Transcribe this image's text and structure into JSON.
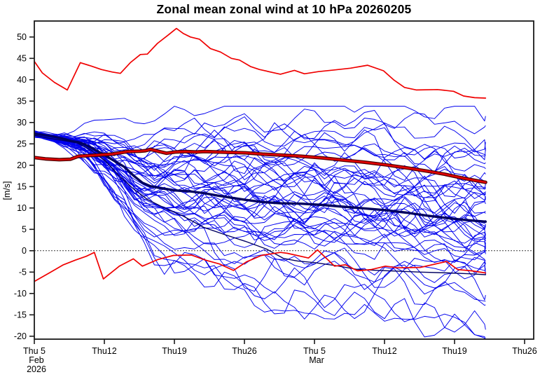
{
  "title": "Zonal mean zonal wind at 10 hPa 20260205",
  "chart_data": {
    "type": "line",
    "title": "Zonal mean zonal wind at 10 hPa 20260205",
    "ylabel": "[m/s]",
    "ylim": [
      -20.7,
      53.7
    ],
    "xlim_days": [
      0,
      49.9
    ],
    "start_date_label": [
      "Thu 5",
      "Feb",
      "2026"
    ],
    "grid": false,
    "legend": "none",
    "zero_line_dashed": true,
    "axis_color": "#1a1a1a",
    "yticks": [
      -20,
      -15,
      -10,
      -5,
      0,
      5,
      10,
      15,
      20,
      25,
      30,
      35,
      40,
      45,
      50
    ],
    "xticks": [
      {
        "d": 0,
        "label": "Thu 5",
        "sub": [
          "Feb",
          "2026"
        ]
      },
      {
        "d": 7,
        "label": "Thu12",
        "sub": []
      },
      {
        "d": 14,
        "label": "Thu19",
        "sub": []
      },
      {
        "d": 21,
        "label": "Thu26",
        "sub": []
      },
      {
        "d": 28,
        "label": "Thu 5",
        "sub": [
          "Mar"
        ]
      },
      {
        "d": 35,
        "label": "Thu12",
        "sub": []
      },
      {
        "d": 42,
        "label": "Thu19",
        "sub": []
      },
      {
        "d": 49,
        "label": "Thu26",
        "sub": []
      }
    ],
    "series": [
      {
        "name": "control-forecast",
        "color": "#000060",
        "width": 1.4,
        "days": [
          0,
          1.5,
          2.9,
          4.3,
          5.7,
          7.1,
          8.5,
          9.9,
          11.3,
          13.0,
          14.8,
          16.9,
          19.0,
          21.1,
          23.2,
          24.9,
          26.3,
          28.1,
          30.2,
          32.3,
          34.4,
          36.5,
          38.6,
          41.4,
          43.5,
          45.1
        ],
        "values": [
          27.0,
          26.3,
          25.8,
          25.2,
          23.5,
          21.0,
          17.5,
          14.5,
          12.0,
          10.0,
          8.2,
          5.5,
          3.8,
          2.2,
          0.4,
          -1.8,
          -2.4,
          -2.8,
          -3.5,
          -4.4,
          -4.6,
          -4.8,
          -5.0,
          -5.2,
          -5.4,
          -5.6
        ]
      },
      {
        "name": "ensemble-mean",
        "color": "#000060",
        "width": 3.4,
        "days": [
          0,
          0.9,
          1.9,
          2.9,
          3.8,
          4.4,
          5.1,
          6.0,
          7.1,
          8.0,
          9.0,
          9.9,
          10.8,
          11.6,
          12.7,
          14.1,
          15.5,
          16.9,
          18.3,
          19.7,
          21.1,
          22.8,
          24.6,
          26.7,
          28.8,
          30.9,
          33.0,
          35.1,
          37.2,
          39.3,
          41.4,
          43.1,
          45.1
        ],
        "values": [
          27.4,
          27.1,
          26.7,
          26.2,
          25.6,
          25.4,
          24.8,
          23.7,
          22.3,
          21.0,
          19.6,
          17.6,
          15.9,
          15.1,
          14.6,
          14.1,
          13.9,
          13.5,
          12.9,
          12.4,
          11.9,
          11.4,
          11.1,
          11.0,
          10.7,
          10.3,
          9.9,
          9.5,
          8.9,
          8.2,
          7.6,
          7.2,
          6.8
        ]
      },
      {
        "name": "climate-min",
        "color": "#f00000",
        "width": 1.7,
        "days": [
          0,
          1.5,
          2.9,
          4.1,
          5.2,
          6.0,
          6.9,
          8.5,
          9.9,
          10.8,
          12.3,
          13.9,
          15.7,
          17.1,
          18.5,
          19.9,
          21.2,
          22.7,
          24.6,
          25.3,
          27.4,
          28.3,
          30.0,
          31.1,
          32.3,
          33.7,
          35.1,
          36.3,
          38.6,
          41.2,
          42.3,
          43.7,
          45.1
        ],
        "values": [
          -7.2,
          -5.2,
          -3.3,
          -2.2,
          -1.3,
          -0.4,
          -6.6,
          -3.6,
          -1.9,
          -3.6,
          -2.1,
          -1.1,
          -1.0,
          -2.2,
          -3.1,
          -4.6,
          -2.6,
          -1.1,
          -0.4,
          -0.6,
          -1.7,
          0.2,
          -3.6,
          -3.3,
          -4.7,
          -4.4,
          -3.6,
          -4.0,
          -3.9,
          -2.5,
          -4.4,
          -4.7,
          -5.2
        ]
      },
      {
        "name": "climate-max",
        "color": "#f00000",
        "width": 1.7,
        "days": [
          0,
          0.8,
          2.0,
          3.3,
          4.6,
          5.7,
          6.7,
          7.8,
          8.6,
          9.6,
          10.6,
          11.3,
          12.3,
          13.4,
          14.2,
          14.9,
          15.6,
          16.5,
          17.6,
          18.6,
          19.7,
          20.5,
          21.6,
          22.5,
          24.6,
          26.0,
          27.0,
          28.4,
          30.0,
          31.6,
          33.3,
          34.9,
          35.9,
          37.0,
          38.2,
          40.3,
          41.9,
          42.9,
          44.0,
          45.1
        ],
        "values": [
          44.3,
          41.6,
          39.4,
          37.6,
          44.0,
          43.2,
          42.4,
          41.8,
          41.5,
          44.0,
          45.9,
          46.0,
          48.5,
          50.5,
          52.0,
          50.8,
          50.0,
          49.5,
          47.3,
          46.5,
          45.0,
          44.6,
          43.1,
          42.4,
          41.3,
          42.2,
          41.4,
          41.9,
          42.3,
          42.7,
          43.4,
          42.1,
          40.0,
          38.2,
          37.6,
          37.7,
          37.3,
          36.2,
          35.8,
          35.7
        ]
      },
      {
        "name": "climate-mean",
        "color": "#e60000",
        "width": 2.4,
        "outline_color": "#500000",
        "outline_width": 5,
        "days": [
          0,
          1.1,
          2.5,
          3.6,
          4.4,
          6.4,
          7.8,
          9.3,
          10.6,
          11.1,
          11.6,
          12.5,
          13.2,
          14.1,
          15.1,
          16.2,
          17.0,
          18.3,
          19.7,
          21.1,
          22.8,
          24.6,
          26.7,
          28.8,
          30.9,
          33.0,
          35.1,
          37.2,
          39.3,
          41.0,
          42.8,
          44.2,
          45.1
        ],
        "values": [
          21.8,
          21.5,
          21.3,
          21.4,
          22.1,
          22.4,
          22.6,
          23.2,
          23.3,
          23.4,
          23.7,
          23.2,
          22.8,
          23.1,
          23.2,
          23.1,
          23.2,
          23.1,
          23.0,
          22.9,
          22.6,
          22.4,
          22.1,
          21.7,
          21.2,
          20.7,
          20.1,
          19.4,
          18.6,
          17.9,
          17.0,
          16.4,
          16.0
        ]
      }
    ],
    "ensemble": {
      "count": 50,
      "seed": 11,
      "color": "#0000ee",
      "width": 0.95,
      "start": 27.25,
      "start_jitter": 0.3,
      "bias_clip": [
        -2.1,
        2.3
      ],
      "spread": [
        [
          0,
          0.3
        ],
        [
          2,
          0.5
        ],
        [
          4,
          0.9
        ],
        [
          5.5,
          1.6
        ],
        [
          7,
          2.6
        ],
        [
          9,
          4.2
        ],
        [
          11,
          6
        ],
        [
          14,
          8
        ],
        [
          18,
          10
        ],
        [
          24,
          11.5
        ],
        [
          32,
          12
        ],
        [
          45,
          12
        ]
      ],
      "noise": [
        [
          0,
          0.12
        ],
        [
          2,
          0.3
        ],
        [
          4,
          0.55
        ],
        [
          7,
          0.95
        ],
        [
          10,
          1.15
        ],
        [
          14,
          1.25
        ],
        [
          45,
          1.25
        ]
      ],
      "wiggle": [
        [
          0,
          0.2
        ],
        [
          5,
          0.5
        ],
        [
          10,
          1.2
        ],
        [
          20,
          2.2
        ],
        [
          45,
          2.8
        ]
      ],
      "end_day": 45.1,
      "clamp": [
        -21.3,
        33.8
      ]
    }
  }
}
